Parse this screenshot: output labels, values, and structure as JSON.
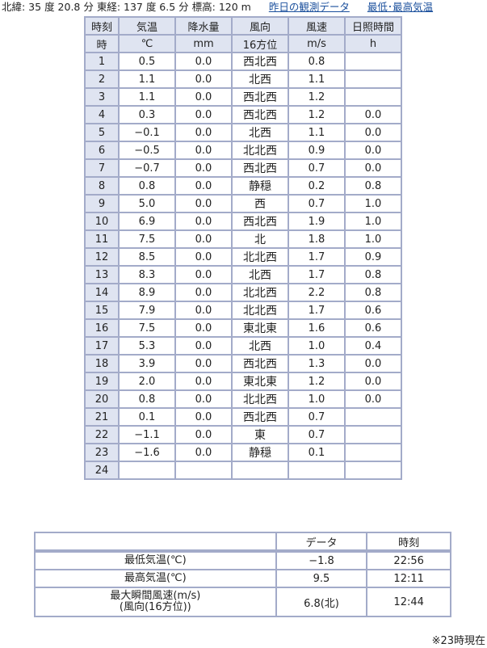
{
  "header": {
    "location": "北緯: 35 度 20.8 分  東経: 137 度 6.5 分  標高: 120 m",
    "link_yesterday": "昨日の観測データ",
    "link_minmax": "最低･最高気温"
  },
  "table": {
    "headers": [
      "時刻",
      "気温",
      "降水量",
      "風向",
      "風速",
      "日照時間"
    ],
    "units": [
      "時",
      "℃",
      "mm",
      "16方位",
      "m/s",
      "h"
    ],
    "rows": [
      [
        "1",
        "0.5",
        "0.0",
        "西北西",
        "0.8",
        ""
      ],
      [
        "2",
        "1.1",
        "0.0",
        "北西",
        "1.1",
        ""
      ],
      [
        "3",
        "1.1",
        "0.0",
        "西北西",
        "1.2",
        ""
      ],
      [
        "4",
        "0.3",
        "0.0",
        "西北西",
        "1.2",
        "0.0"
      ],
      [
        "5",
        "−0.1",
        "0.0",
        "北西",
        "1.1",
        "0.0"
      ],
      [
        "6",
        "−0.5",
        "0.0",
        "北北西",
        "0.9",
        "0.0"
      ],
      [
        "7",
        "−0.7",
        "0.0",
        "西北西",
        "0.7",
        "0.0"
      ],
      [
        "8",
        "0.8",
        "0.0",
        "静穏",
        "0.2",
        "0.8"
      ],
      [
        "9",
        "5.0",
        "0.0",
        "西",
        "0.7",
        "1.0"
      ],
      [
        "10",
        "6.9",
        "0.0",
        "西北西",
        "1.9",
        "1.0"
      ],
      [
        "11",
        "7.5",
        "0.0",
        "北",
        "1.8",
        "1.0"
      ],
      [
        "12",
        "8.5",
        "0.0",
        "北北西",
        "1.7",
        "0.9"
      ],
      [
        "13",
        "8.3",
        "0.0",
        "北西",
        "1.7",
        "0.8"
      ],
      [
        "14",
        "8.9",
        "0.0",
        "北北西",
        "2.2",
        "0.8"
      ],
      [
        "15",
        "7.9",
        "0.0",
        "北北西",
        "1.7",
        "0.6"
      ],
      [
        "16",
        "7.5",
        "0.0",
        "東北東",
        "1.6",
        "0.6"
      ],
      [
        "17",
        "5.3",
        "0.0",
        "北西",
        "1.0",
        "0.4"
      ],
      [
        "18",
        "3.9",
        "0.0",
        "西北西",
        "1.3",
        "0.0"
      ],
      [
        "19",
        "2.0",
        "0.0",
        "東北東",
        "1.2",
        "0.0"
      ],
      [
        "20",
        "0.8",
        "0.0",
        "北北西",
        "1.0",
        "0.0"
      ],
      [
        "21",
        "0.1",
        "0.0",
        "西北西",
        "0.7",
        ""
      ],
      [
        "22",
        "−1.1",
        "0.0",
        "東",
        "0.7",
        ""
      ],
      [
        "23",
        "−1.6",
        "0.0",
        "静穏",
        "0.1",
        ""
      ],
      [
        "24",
        "",
        "",
        "",
        "",
        ""
      ]
    ]
  },
  "summary": {
    "headers": [
      "",
      "データ",
      "時刻"
    ],
    "rows": [
      {
        "label": "最低気温(℃)",
        "label2": "",
        "value": "−1.8",
        "time": "22:56"
      },
      {
        "label": "最高気温(℃)",
        "label2": "",
        "value": "9.5",
        "time": "12:11"
      },
      {
        "label": "最大瞬間風速(m/s)",
        "label2": "(風向(16方位))",
        "value": "6.8(北)",
        "time": "12:44"
      }
    ]
  },
  "note": "※23時現在"
}
